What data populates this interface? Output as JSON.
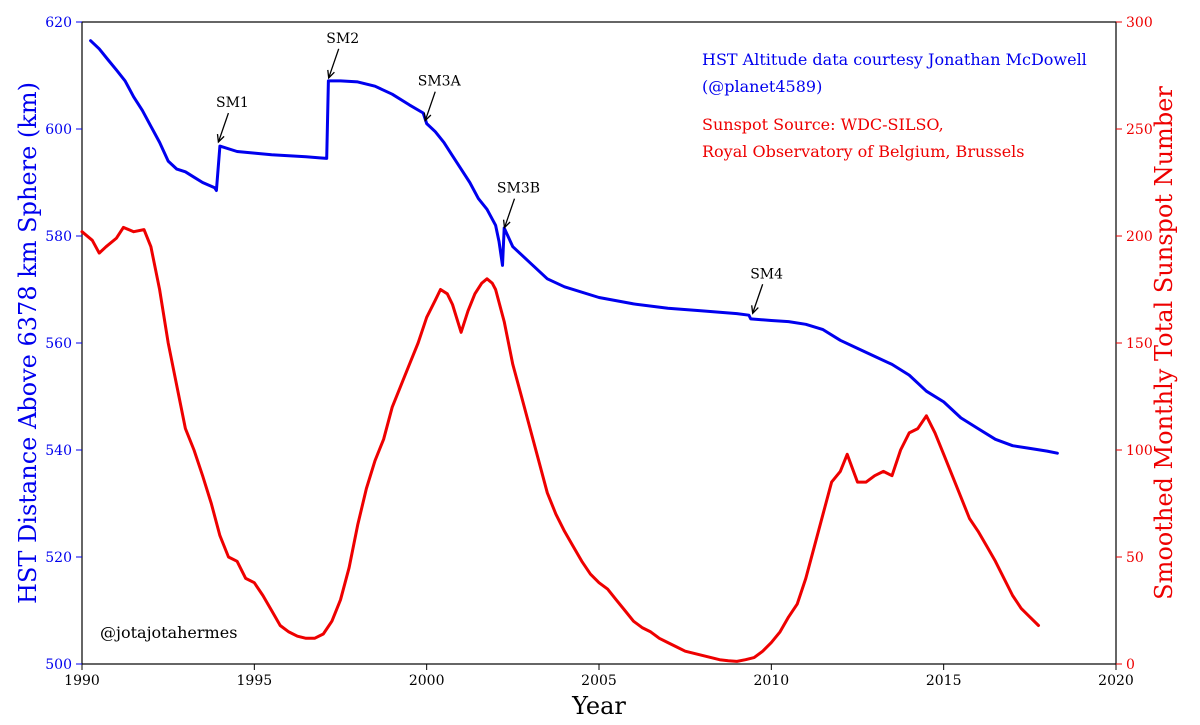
{
  "chart_data": {
    "type": "line",
    "xlabel": "Year",
    "ylabel_left": "HST Distance Above 6378 km Sphere (km)",
    "ylabel_right": "Smoothed Monthly Total Sunspot Number",
    "xlim": [
      1990,
      2020
    ],
    "ylim_left": [
      500,
      620
    ],
    "ylim_right": [
      0,
      300
    ],
    "x_ticks": [
      "1990",
      "1995",
      "2000",
      "2005",
      "2010",
      "2015",
      "2020"
    ],
    "y_left_ticks": [
      "500",
      "520",
      "540",
      "560",
      "580",
      "600",
      "620"
    ],
    "y_right_ticks": [
      "0",
      "50",
      "100",
      "150",
      "200",
      "250",
      "300"
    ],
    "colors": {
      "altitude": "#0000ee",
      "sunspot": "#ee0000",
      "text": "#000000"
    },
    "annotations": [
      {
        "label": "SM1",
        "x": 1993.9,
        "y": 597
      },
      {
        "label": "SM2",
        "x": 1997.1,
        "y": 609
      },
      {
        "label": "SM3A",
        "x": 1999.9,
        "y": 601
      },
      {
        "label": "SM3B",
        "x": 2002.2,
        "y": 581
      },
      {
        "label": "SM4",
        "x": 2009.4,
        "y": 565
      }
    ],
    "series": [
      {
        "axis": "left",
        "x": [
          1990.25,
          1990.5,
          1990.75,
          1991.0,
          1991.25,
          1991.5,
          1991.75,
          1992.0,
          1992.25,
          1992.5,
          1992.75,
          1993.0,
          1993.25,
          1993.5,
          1993.85,
          1993.9,
          1994.0,
          1994.5,
          1995.0,
          1995.5,
          1996.0,
          1996.5,
          1996.9,
          1997.1,
          1997.15,
          1997.2,
          1997.5,
          1998.0,
          1998.5,
          1999.0,
          1999.5,
          1999.9,
          2000.0,
          2000.25,
          2000.5,
          2000.75,
          2001.0,
          2001.25,
          2001.5,
          2001.75,
          2002.0,
          2002.1,
          2002.2,
          2002.25,
          2002.5,
          2003.0,
          2003.5,
          2004.0,
          2005.0,
          2006.0,
          2007.0,
          2008.0,
          2009.0,
          2009.35,
          2009.4,
          2010.0,
          2010.5,
          2011.0,
          2011.5,
          2012.0,
          2012.5,
          2013.0,
          2013.5,
          2014.0,
          2014.5,
          2015.0,
          2015.5,
          2016.0,
          2016.5,
          2017.0,
          2017.5,
          2018.0,
          2018.3
        ],
        "y": [
          616.5,
          615.0,
          613.0,
          611.0,
          609.0,
          606.0,
          603.5,
          600.5,
          597.5,
          594.0,
          592.5,
          592.0,
          591.0,
          590.0,
          589.0,
          588.5,
          596.8,
          595.8,
          595.5,
          595.2,
          595.0,
          594.8,
          594.6,
          594.5,
          609.0,
          609.0,
          609.0,
          608.8,
          608.0,
          606.5,
          604.5,
          603.0,
          601.0,
          599.5,
          597.5,
          595.0,
          592.5,
          590.0,
          587.0,
          585.0,
          582.0,
          579.0,
          574.5,
          581.5,
          578.0,
          575.0,
          572.0,
          570.5,
          568.5,
          567.3,
          566.5,
          566.0,
          565.5,
          565.2,
          564.5,
          564.2,
          564.0,
          563.5,
          562.5,
          560.5,
          559.0,
          557.5,
          556.0,
          554.0,
          551.0,
          549.0,
          546.0,
          544.0,
          542.0,
          540.8,
          540.3,
          539.8,
          539.4
        ]
      },
      {
        "axis": "right",
        "x": [
          1990.0,
          1990.3,
          1990.5,
          1990.7,
          1991.0,
          1991.2,
          1991.5,
          1991.8,
          1992.0,
          1992.25,
          1992.5,
          1992.75,
          1993.0,
          1993.25,
          1993.5,
          1993.75,
          1994.0,
          1994.25,
          1994.5,
          1994.75,
          1995.0,
          1995.25,
          1995.5,
          1995.75,
          1996.0,
          1996.25,
          1996.5,
          1996.75,
          1997.0,
          1997.25,
          1997.5,
          1997.75,
          1998.0,
          1998.25,
          1998.5,
          1998.75,
          1999.0,
          1999.25,
          1999.5,
          1999.75,
          2000.0,
          2000.25,
          2000.4,
          2000.6,
          2000.75,
          2001.0,
          2001.2,
          2001.4,
          2001.6,
          2001.75,
          2001.9,
          2002.0,
          2002.25,
          2002.5,
          2002.75,
          2003.0,
          2003.25,
          2003.5,
          2003.75,
          2004.0,
          2004.25,
          2004.5,
          2004.75,
          2005.0,
          2005.25,
          2005.5,
          2005.75,
          2006.0,
          2006.25,
          2006.5,
          2006.75,
          2007.0,
          2007.25,
          2007.5,
          2007.75,
          2008.0,
          2008.25,
          2008.5,
          2008.75,
          2009.0,
          2009.25,
          2009.5,
          2009.75,
          2010.0,
          2010.25,
          2010.5,
          2010.75,
          2011.0,
          2011.25,
          2011.5,
          2011.75,
          2012.0,
          2012.2,
          2012.5,
          2012.75,
          2013.0,
          2013.25,
          2013.5,
          2013.75,
          2014.0,
          2014.25,
          2014.5,
          2014.75,
          2015.0,
          2015.25,
          2015.5,
          2015.75,
          2016.0,
          2016.25,
          2016.5,
          2016.75,
          2017.0,
          2017.25,
          2017.5,
          2017.75
        ],
        "y": [
          202,
          198,
          192,
          195,
          199,
          204,
          202,
          203,
          195,
          175,
          150,
          130,
          110,
          100,
          88,
          75,
          60,
          50,
          48,
          40,
          38,
          32,
          25,
          18,
          15,
          13,
          12,
          12,
          14,
          20,
          30,
          45,
          65,
          82,
          95,
          105,
          120,
          130,
          140,
          150,
          162,
          170,
          175,
          173,
          168,
          155,
          165,
          173,
          178,
          180,
          178,
          175,
          160,
          140,
          125,
          110,
          95,
          80,
          70,
          62,
          55,
          48,
          42,
          38,
          35,
          30,
          25,
          20,
          17,
          15,
          12,
          10,
          8,
          6,
          5,
          4,
          3,
          2,
          1.5,
          1.2,
          2,
          3,
          6,
          10,
          15,
          22,
          28,
          40,
          55,
          70,
          85,
          90,
          98,
          85,
          85,
          88,
          90,
          88,
          100,
          108,
          110,
          116,
          108,
          98,
          88,
          78,
          68,
          62,
          55,
          48,
          40,
          32,
          26,
          22,
          18
        ]
      }
    ]
  },
  "texts": {
    "credit_line1": "HST Altitude data courtesy Jonathan McDowell",
    "credit_line2": "(@planet4589)",
    "source_line1": "Sunspot Source: WDC-SILSO,",
    "source_line2": "Royal Observatory of Belgium, Brussels",
    "handle": "@jotajotahermes"
  }
}
